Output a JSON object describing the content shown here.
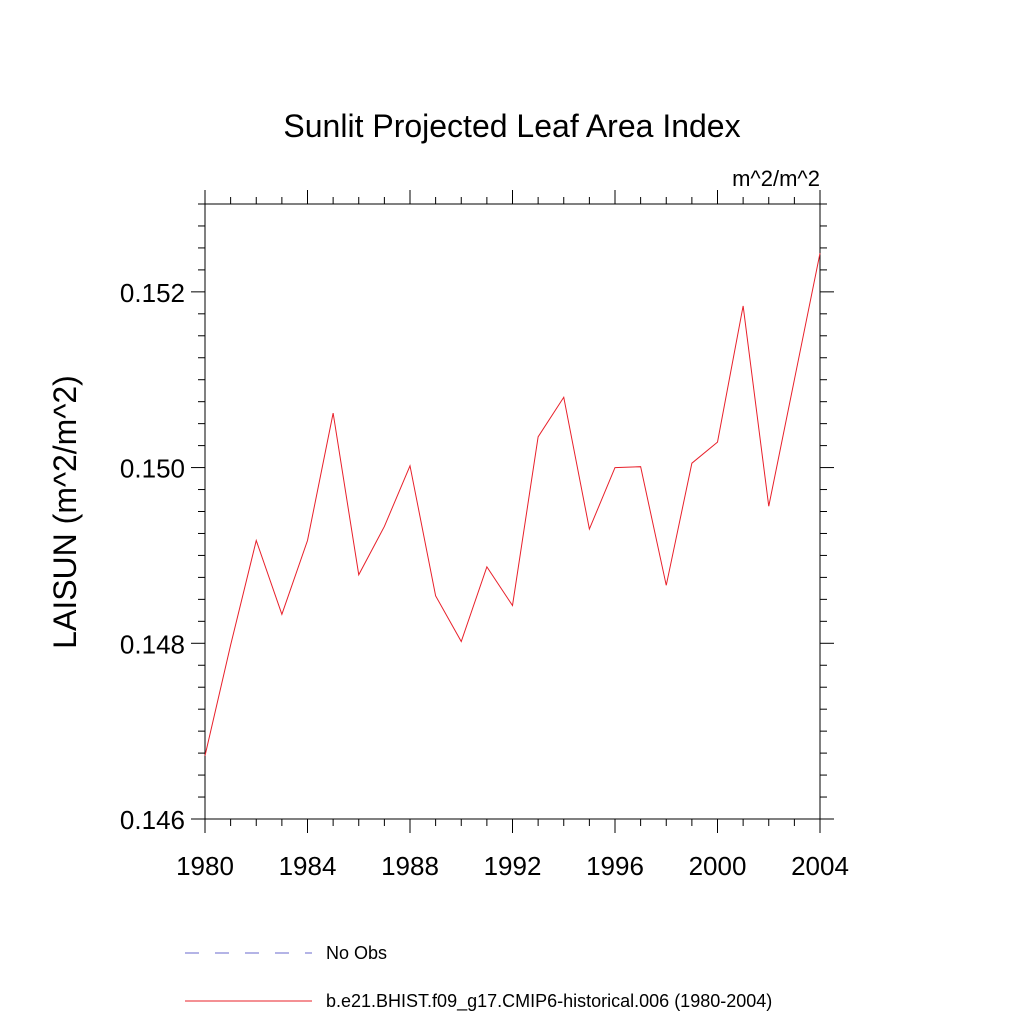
{
  "chart_data": {
    "type": "line",
    "title": "Sunlit Projected Leaf Area Index",
    "units_label": "m^2/m^2",
    "ylabel": "LAISUN  (m^2/m^2)",
    "xlabel": "",
    "xlim": [
      1980,
      2004
    ],
    "ylim": [
      0.146,
      0.153
    ],
    "x_ticks": [
      1980,
      1984,
      1988,
      1992,
      1996,
      2000,
      2004
    ],
    "x_tick_labels": [
      "1980",
      "1984",
      "1988",
      "1992",
      "1996",
      "2000",
      "2004"
    ],
    "y_ticks": [
      0.146,
      0.148,
      0.15,
      0.152
    ],
    "y_tick_labels": [
      "0.146",
      "0.148",
      "0.150",
      "0.152"
    ],
    "grid": false,
    "legend_position": "bottom",
    "series": [
      {
        "name": "No Obs",
        "style": "dashed",
        "color": "#6a6acd",
        "x": [],
        "y": []
      },
      {
        "name": "b.e21.BHIST.f09_g17.CMIP6-historical.006 (1980-2004)",
        "style": "solid",
        "color": "#e8202a",
        "x": [
          1980,
          1981,
          1982,
          1983,
          1984,
          1985,
          1986,
          1987,
          1988,
          1989,
          1990,
          1991,
          1992,
          1993,
          1994,
          1995,
          1996,
          1997,
          1998,
          1999,
          2000,
          2001,
          2002,
          2003,
          2004
        ],
        "y": [
          0.14672,
          0.14798,
          0.14917,
          0.14833,
          0.14917,
          0.15062,
          0.14878,
          0.14933,
          0.15002,
          0.14854,
          0.14802,
          0.14887,
          0.14843,
          0.15035,
          0.1508,
          0.1493,
          0.15,
          0.15001,
          0.14866,
          0.15005,
          0.15029,
          0.15184,
          0.14956,
          0.151,
          0.15244
        ]
      }
    ]
  }
}
